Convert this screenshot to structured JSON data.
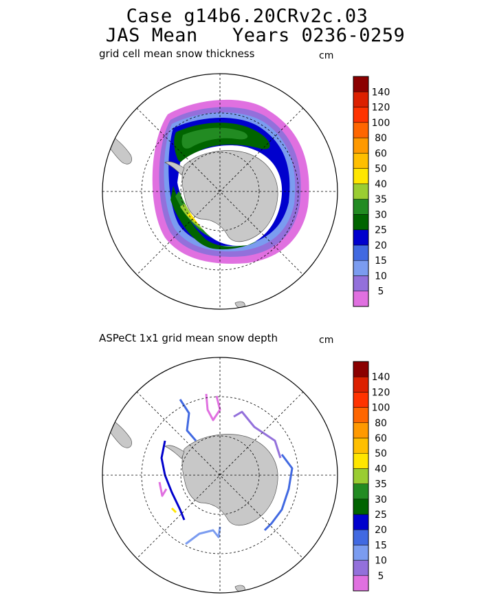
{
  "header": {
    "title_line1": "Case g14b6.20CRv2c.03",
    "title_line2": "JAS Mean   Years 0236-0259"
  },
  "colors": {
    "land": "#c8c8c8",
    "ice_edge": "#ffffff",
    "grid_line": "#000000"
  },
  "chart_data": [
    {
      "type": "heatmap",
      "title": "grid cell mean snow thickness",
      "unit": "cm",
      "colorbar": {
        "levels": [
          "5",
          "10",
          "15",
          "20",
          "25",
          "30",
          "35",
          "40",
          "50",
          "60",
          "80",
          "100",
          "120",
          "140"
        ],
        "colors": [
          "#e070e0",
          "#9370db",
          "#7b9cf0",
          "#4169e1",
          "#0000cd",
          "#006400",
          "#228b22",
          "#9acd32",
          "#ffe600",
          "#ffbf00",
          "#ff9900",
          "#ff6600",
          "#ff3300",
          "#dc2000",
          "#8b0000"
        ]
      }
    },
    {
      "type": "heatmap",
      "title": "ASPeCt 1x1 grid mean snow depth",
      "unit": "cm",
      "colorbar": {
        "levels": [
          "5",
          "10",
          "15",
          "20",
          "25",
          "30",
          "35",
          "40",
          "50",
          "60",
          "80",
          "100",
          "120",
          "140"
        ],
        "colors": [
          "#e070e0",
          "#9370db",
          "#7b9cf0",
          "#4169e1",
          "#0000cd",
          "#006400",
          "#228b22",
          "#9acd32",
          "#ffe600",
          "#ffbf00",
          "#ff9900",
          "#ff6600",
          "#ff3300",
          "#dc2000",
          "#8b0000"
        ]
      }
    }
  ]
}
